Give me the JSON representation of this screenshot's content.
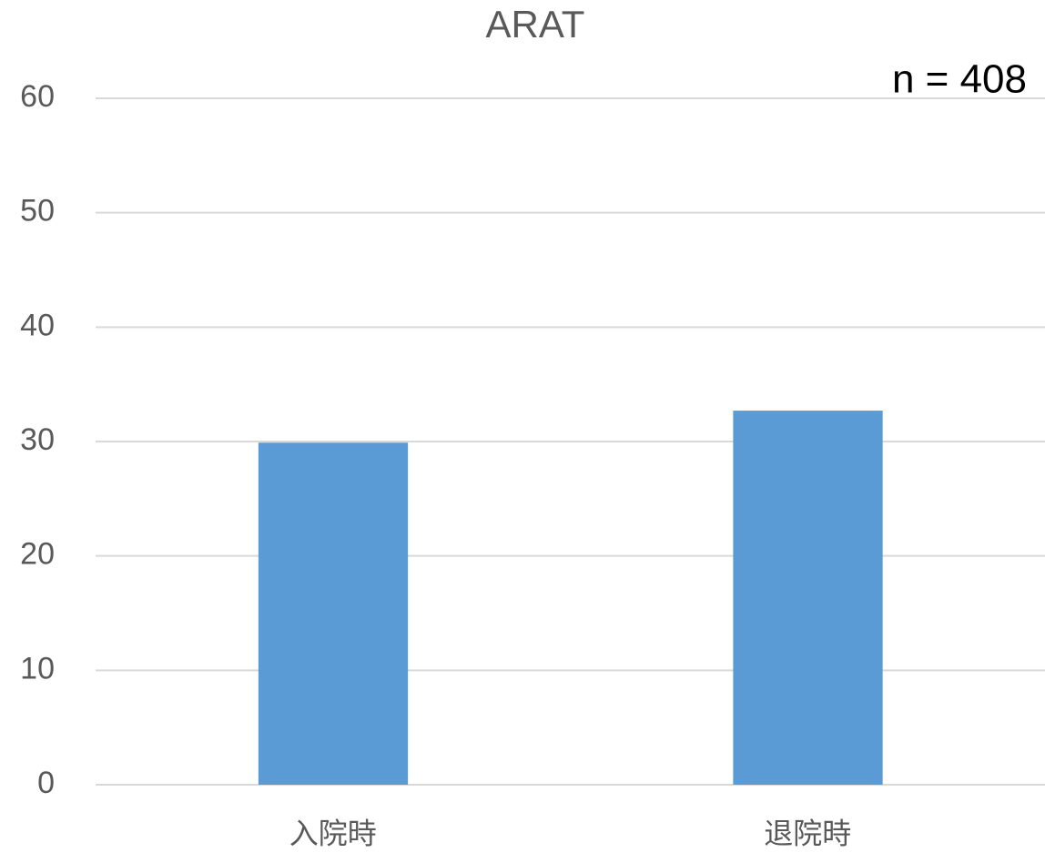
{
  "chart_data": {
    "type": "bar",
    "title": "ARAT",
    "annotation": "n = 408",
    "categories": [
      "入院時",
      "退院時"
    ],
    "values": [
      29.9,
      32.7
    ],
    "color": "#5b9bd5",
    "ylim": [
      0,
      60
    ],
    "yticks": [
      0,
      10,
      20,
      30,
      40,
      50,
      60
    ],
    "grid": true
  }
}
